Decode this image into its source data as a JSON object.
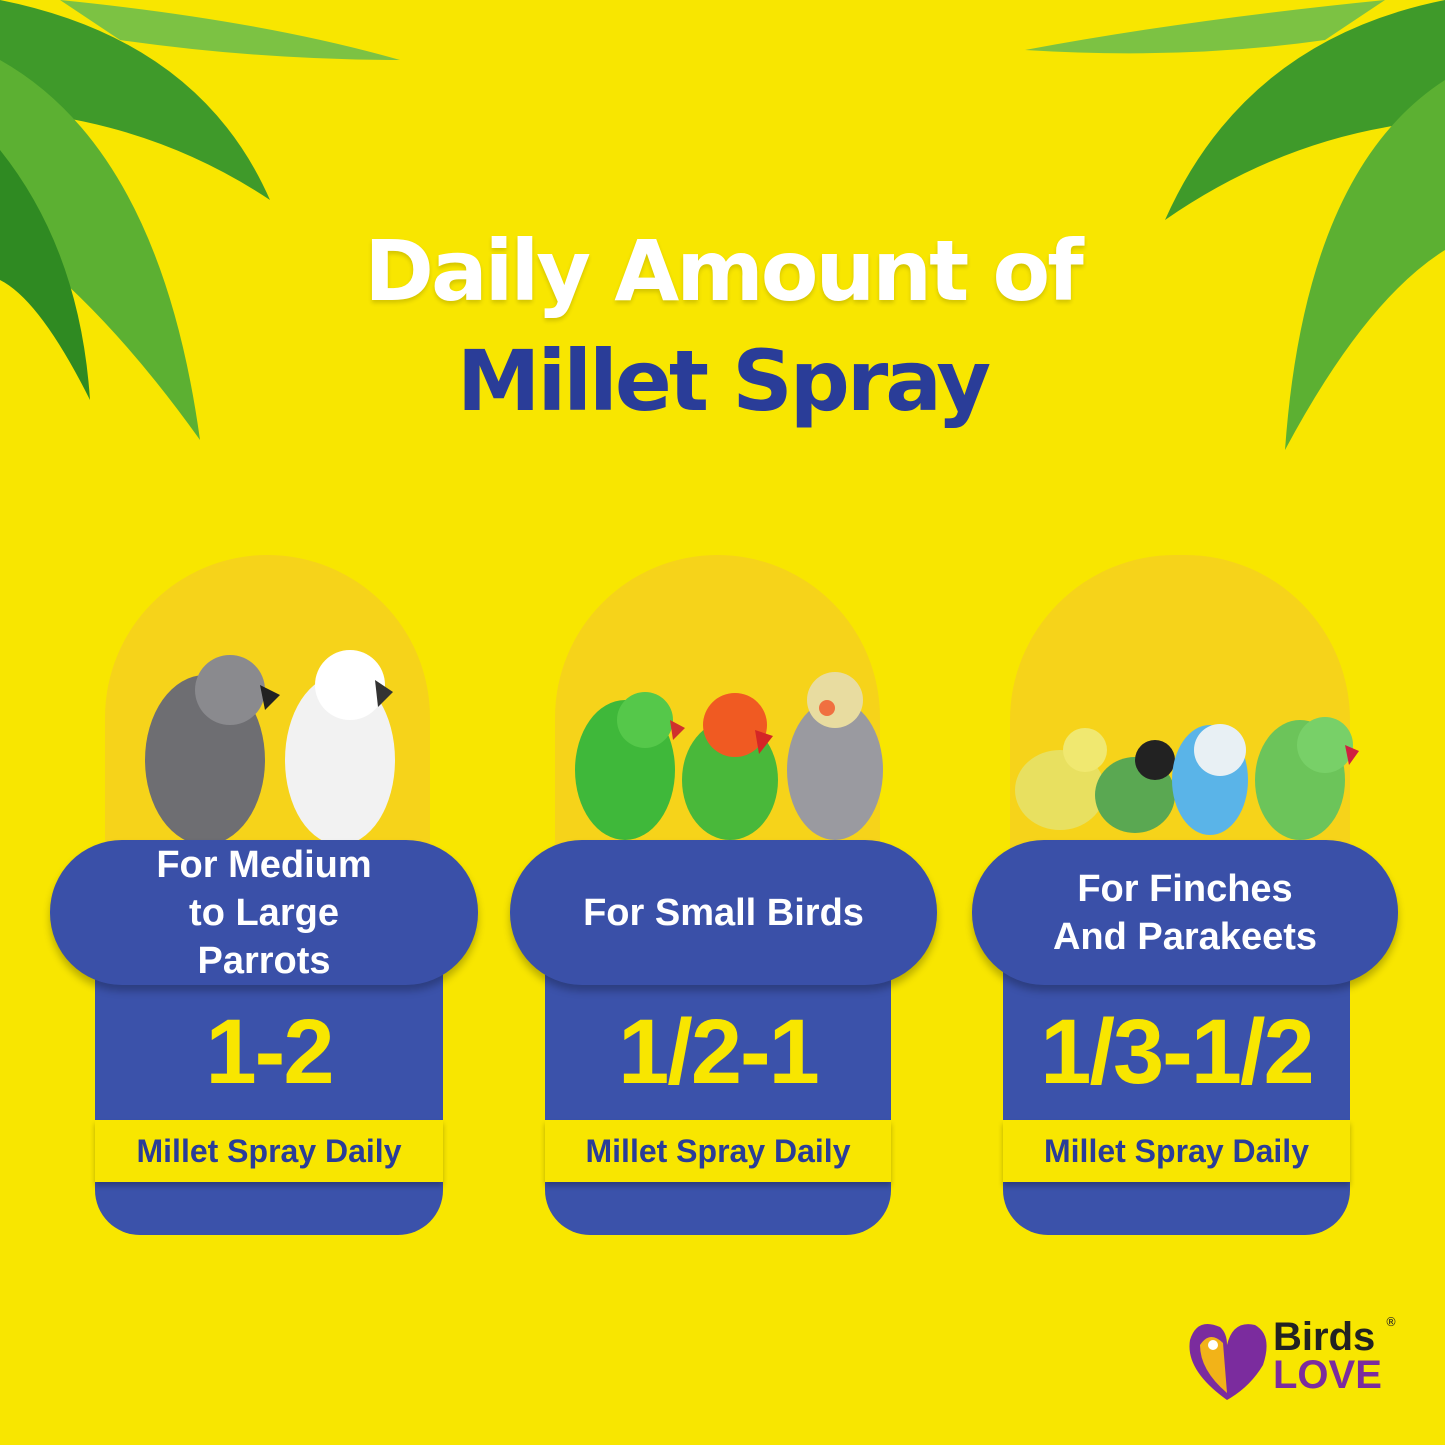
{
  "title": {
    "line1": "Daily Amount of",
    "line2": "Millet Spray"
  },
  "cards": [
    {
      "heading": "For Medium to Large Parrots",
      "amount": "1-2",
      "unit": "Millet Spray Daily"
    },
    {
      "heading": "For Small Birds",
      "amount": "1/2-1",
      "unit": "Millet Spray Daily"
    },
    {
      "heading": "For Finches And Parakeets",
      "amount": "1/3-1/2",
      "unit": "Millet Spray Daily"
    }
  ],
  "logo": {
    "line1": "Birds",
    "line2": "LOVE",
    "mark": "®"
  },
  "colors": {
    "background": "#f8e600",
    "card": "#3a50a8",
    "title_blue": "#2a3d98",
    "amount": "#f8e600",
    "logo_purple": "#7b2c9e"
  }
}
